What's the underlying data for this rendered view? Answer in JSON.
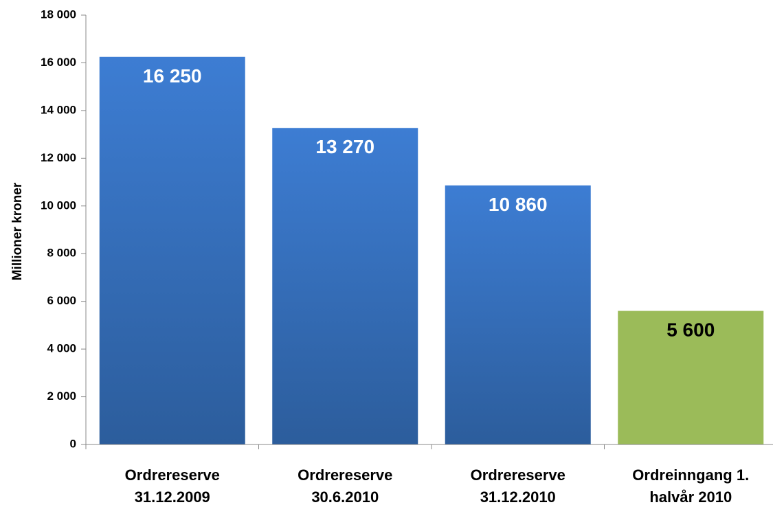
{
  "chart_data": {
    "type": "bar",
    "title": "",
    "xlabel": "",
    "ylabel": "Millioner kroner",
    "ylim": [
      0,
      18000
    ],
    "yticks": [
      0,
      2000,
      4000,
      6000,
      8000,
      10000,
      12000,
      14000,
      16000,
      18000
    ],
    "ytick_labels": [
      "0",
      "2 000",
      "4 000",
      "6 000",
      "8 000",
      "10 000",
      "12 000",
      "14 000",
      "16 000",
      "18 000"
    ],
    "grid": false,
    "legend": "none",
    "categories": [
      [
        "Ordrereserve",
        "31.12.2009"
      ],
      [
        "Ordrereserve",
        "30.6.2010"
      ],
      [
        "Ordrereserve",
        "31.12.2010"
      ],
      [
        "Ordreinngang 1.",
        "halvår 2010"
      ]
    ],
    "values": [
      16250,
      13270,
      10860,
      5600
    ],
    "data_labels": [
      "16 250",
      "13 270",
      "10 860",
      "5 600"
    ],
    "colors": [
      "#3a74c4",
      "#3a74c4",
      "#3a74c4",
      "#9bbb59"
    ],
    "label_colors": [
      "#ffffff",
      "#ffffff",
      "#ffffff",
      "#000000"
    ]
  }
}
